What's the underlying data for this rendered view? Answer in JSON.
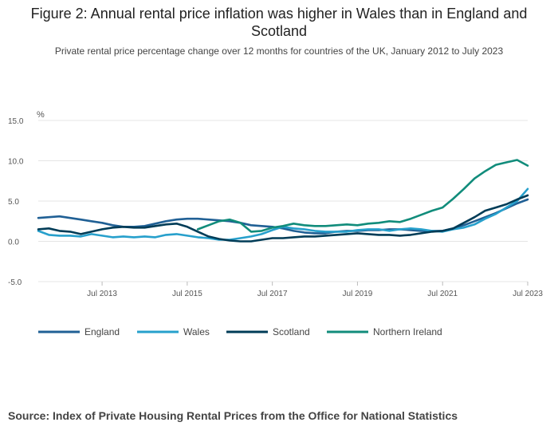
{
  "header": {
    "title": "Figure 2: Annual rental price inflation was higher in Wales than in England and Scotland",
    "subtitle": "Private rental price percentage change over 12 months for countries of the UK, January 2012 to July 2023"
  },
  "footer": {
    "source": "Source: Index of Private Housing Rental Prices from the Office for National Statistics"
  },
  "chart_data": {
    "type": "line",
    "title": "Figure 2: Annual rental price inflation was higher in Wales than in England and Scotland",
    "subtitle": "Private rental price percentage change over 12 months for countries of the UK, January 2012 to July 2023",
    "ylabel": "%",
    "xlabel": "",
    "ylim": [
      -5,
      15
    ],
    "yticks": [
      "15.0",
      "10.0",
      "5.0",
      "0.0",
      "-5.0"
    ],
    "ytick_values": [
      15,
      10,
      5,
      0,
      -5
    ],
    "xticks": [
      "Jul 2013",
      "Jul 2015",
      "Jul 2017",
      "Jul 2019",
      "Jul 2021",
      "Jul 2023"
    ],
    "xtick_dates": [
      "2013-07",
      "2015-07",
      "2017-07",
      "2019-07",
      "2021-07",
      "2023-07"
    ],
    "x_range": [
      "2012-01",
      "2023-07"
    ],
    "grid": true,
    "legend_position": "bottom-left",
    "series": [
      {
        "name": "England",
        "color": "#206095",
        "x": [
          "2012-01",
          "2012-04",
          "2012-07",
          "2012-10",
          "2013-01",
          "2013-04",
          "2013-07",
          "2013-10",
          "2014-01",
          "2014-04",
          "2014-07",
          "2014-10",
          "2015-01",
          "2015-04",
          "2015-07",
          "2015-10",
          "2016-01",
          "2016-04",
          "2016-07",
          "2016-10",
          "2017-01",
          "2017-04",
          "2017-07",
          "2017-10",
          "2018-01",
          "2018-04",
          "2018-07",
          "2018-10",
          "2019-01",
          "2019-04",
          "2019-07",
          "2019-10",
          "2020-01",
          "2020-04",
          "2020-07",
          "2020-10",
          "2021-01",
          "2021-04",
          "2021-07",
          "2021-10",
          "2022-01",
          "2022-04",
          "2022-07",
          "2022-10",
          "2023-01",
          "2023-04",
          "2023-07"
        ],
        "values": [
          2.9,
          3.0,
          3.1,
          2.9,
          2.7,
          2.5,
          2.3,
          2.0,
          1.8,
          1.8,
          1.9,
          2.2,
          2.5,
          2.7,
          2.8,
          2.8,
          2.7,
          2.6,
          2.5,
          2.3,
          2.0,
          1.9,
          1.8,
          1.6,
          1.3,
          1.1,
          1.0,
          1.0,
          1.2,
          1.3,
          1.3,
          1.4,
          1.4,
          1.5,
          1.5,
          1.4,
          1.3,
          1.3,
          1.3,
          1.6,
          2.0,
          2.5,
          3.0,
          3.5,
          4.1,
          4.7,
          5.2
        ]
      },
      {
        "name": "Wales",
        "color": "#27a0cc",
        "x": [
          "2012-01",
          "2012-04",
          "2012-07",
          "2012-10",
          "2013-01",
          "2013-04",
          "2013-07",
          "2013-10",
          "2014-01",
          "2014-04",
          "2014-07",
          "2014-10",
          "2015-01",
          "2015-04",
          "2015-07",
          "2015-10",
          "2016-01",
          "2016-04",
          "2016-07",
          "2016-10",
          "2017-01",
          "2017-04",
          "2017-07",
          "2017-10",
          "2018-01",
          "2018-04",
          "2018-07",
          "2018-10",
          "2019-01",
          "2019-04",
          "2019-07",
          "2019-10",
          "2020-01",
          "2020-04",
          "2020-07",
          "2020-10",
          "2021-01",
          "2021-04",
          "2021-07",
          "2021-10",
          "2022-01",
          "2022-04",
          "2022-07",
          "2022-10",
          "2023-01",
          "2023-04",
          "2023-07"
        ],
        "values": [
          1.3,
          0.8,
          0.7,
          0.7,
          0.6,
          0.9,
          0.7,
          0.5,
          0.6,
          0.5,
          0.6,
          0.5,
          0.8,
          0.9,
          0.7,
          0.5,
          0.4,
          0.2,
          0.2,
          0.4,
          0.6,
          0.9,
          1.4,
          1.8,
          1.6,
          1.5,
          1.3,
          1.2,
          1.2,
          1.2,
          1.4,
          1.5,
          1.5,
          1.3,
          1.5,
          1.6,
          1.5,
          1.3,
          1.2,
          1.5,
          1.7,
          2.1,
          2.8,
          3.4,
          4.2,
          5.0,
          6.5
        ]
      },
      {
        "name": "Scotland",
        "color": "#003c57",
        "x": [
          "2012-01",
          "2012-04",
          "2012-07",
          "2012-10",
          "2013-01",
          "2013-04",
          "2013-07",
          "2013-10",
          "2014-01",
          "2014-04",
          "2014-07",
          "2014-10",
          "2015-01",
          "2015-04",
          "2015-07",
          "2015-10",
          "2016-01",
          "2016-04",
          "2016-07",
          "2016-10",
          "2017-01",
          "2017-04",
          "2017-07",
          "2017-10",
          "2018-01",
          "2018-04",
          "2018-07",
          "2018-10",
          "2019-01",
          "2019-04",
          "2019-07",
          "2019-10",
          "2020-01",
          "2020-04",
          "2020-07",
          "2020-10",
          "2021-01",
          "2021-04",
          "2021-07",
          "2021-10",
          "2022-01",
          "2022-04",
          "2022-07",
          "2022-10",
          "2023-01",
          "2023-04",
          "2023-07"
        ],
        "values": [
          1.5,
          1.6,
          1.3,
          1.2,
          0.9,
          1.2,
          1.5,
          1.7,
          1.8,
          1.7,
          1.7,
          1.9,
          2.1,
          2.2,
          1.8,
          1.2,
          0.6,
          0.3,
          0.1,
          0.0,
          0.0,
          0.2,
          0.4,
          0.4,
          0.5,
          0.6,
          0.6,
          0.7,
          0.8,
          0.9,
          1.0,
          0.9,
          0.8,
          0.8,
          0.7,
          0.8,
          1.0,
          1.2,
          1.3,
          1.6,
          2.3,
          3.0,
          3.8,
          4.2,
          4.6,
          5.2,
          5.7
        ]
      },
      {
        "name": "Northern Ireland",
        "color": "#118c7b",
        "x": [
          "2015-10",
          "2016-01",
          "2016-04",
          "2016-07",
          "2016-10",
          "2017-01",
          "2017-04",
          "2017-07",
          "2017-10",
          "2018-01",
          "2018-04",
          "2018-07",
          "2018-10",
          "2019-01",
          "2019-04",
          "2019-07",
          "2019-10",
          "2020-01",
          "2020-04",
          "2020-07",
          "2020-10",
          "2021-01",
          "2021-04",
          "2021-07",
          "2021-10",
          "2022-01",
          "2022-04",
          "2022-07",
          "2022-10",
          "2023-01",
          "2023-04",
          "2023-07"
        ],
        "values": [
          1.5,
          2.0,
          2.5,
          2.7,
          2.3,
          1.2,
          1.3,
          1.7,
          1.9,
          2.2,
          2.0,
          1.9,
          1.9,
          2.0,
          2.1,
          2.0,
          2.2,
          2.3,
          2.5,
          2.4,
          2.8,
          3.3,
          3.8,
          4.2,
          5.3,
          6.5,
          7.8,
          8.7,
          9.5,
          9.8,
          10.1,
          9.4
        ]
      }
    ]
  }
}
